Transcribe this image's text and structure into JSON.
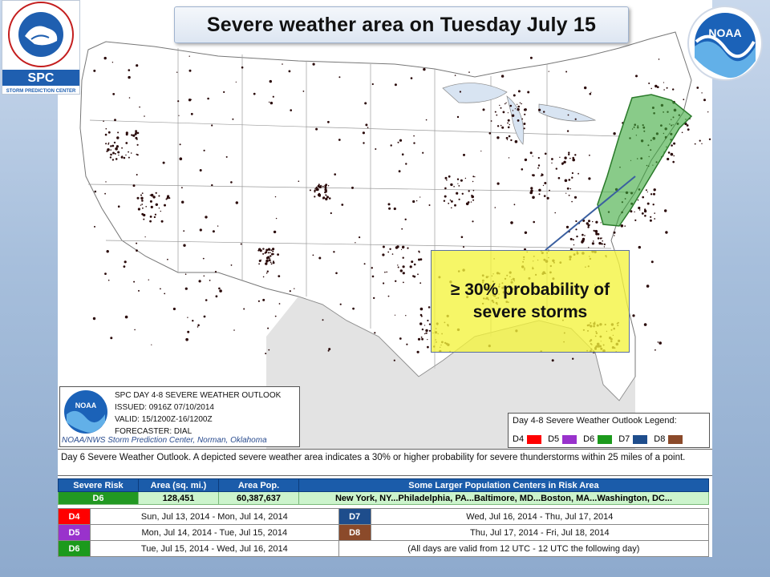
{
  "title": "Severe weather  area on Tuesday July 15",
  "logos": {
    "nws_text_top": "NATIONAL WEATHER SERVICE",
    "nws_bottom": "SPC",
    "nws_sub": "STORM PREDICTION CENTER",
    "noaa": "NOAA"
  },
  "callout": {
    "line1": "≥ 30%  probability of",
    "line2": "severe storms"
  },
  "outlook_header": {
    "logo": "NOAA",
    "title": "SPC DAY 4-8 SEVERE WEATHER OUTLOOK",
    "issued": "ISSUED: 0916Z 07/10/2014",
    "valid": "VALID: 15/1200Z-16/1200Z",
    "forecaster": "FORECASTER: DIAL",
    "footer": "NOAA/NWS Storm Prediction Center, Norman, Oklahoma"
  },
  "legend": {
    "title": "Day 4-8 Severe Weather Outlook Legend:",
    "items": [
      {
        "label": "D4",
        "color": "#ff0000"
      },
      {
        "label": "D5",
        "color": "#9932cc"
      },
      {
        "label": "D6",
        "color": "#1c9a1c"
      },
      {
        "label": "D7",
        "color": "#1e4d8c"
      },
      {
        "label": "D8",
        "color": "#8b4a2a"
      }
    ]
  },
  "description": "Day 6 Severe Weather Outlook. A depicted severe weather area indicates a 30% or higher probability for severe thunderstorms within 25 miles of a point.",
  "risk_table": {
    "headers": [
      "Severe Risk",
      "Area (sq. mi.)",
      "Area Pop.",
      "Some Larger Population Centers in Risk Area"
    ],
    "row": [
      "D6",
      "128,451",
      "60,387,637",
      "New York, NY...Philadelphia, PA...Baltimore, MD...Boston, MA...Washington, DC..."
    ]
  },
  "dates_table": {
    "rows": [
      {
        "left_code": "D4",
        "left_text": "Sun, Jul 13, 2014 - Mon, Jul 14, 2014",
        "right_code": "D7",
        "right_text": "Wed, Jul 16, 2014 - Thu, Jul 17, 2014"
      },
      {
        "left_code": "D5",
        "left_text": "Mon, Jul 14, 2014 - Tue, Jul 15, 2014",
        "right_code": "D8",
        "right_text": "Thu, Jul 17, 2014 - Fri, Jul 18, 2014"
      },
      {
        "left_code": "D6",
        "left_text": "Tue, Jul 15, 2014 - Wed, Jul 16, 2014",
        "right_code": "",
        "right_text": "(All days are valid from 12 UTC - 12 UTC the following day)"
      }
    ]
  },
  "colors": {
    "risk_area_fill": "#3aa83a",
    "callout_fill": "#f4f43c",
    "header_blue": "#1b5caa"
  }
}
